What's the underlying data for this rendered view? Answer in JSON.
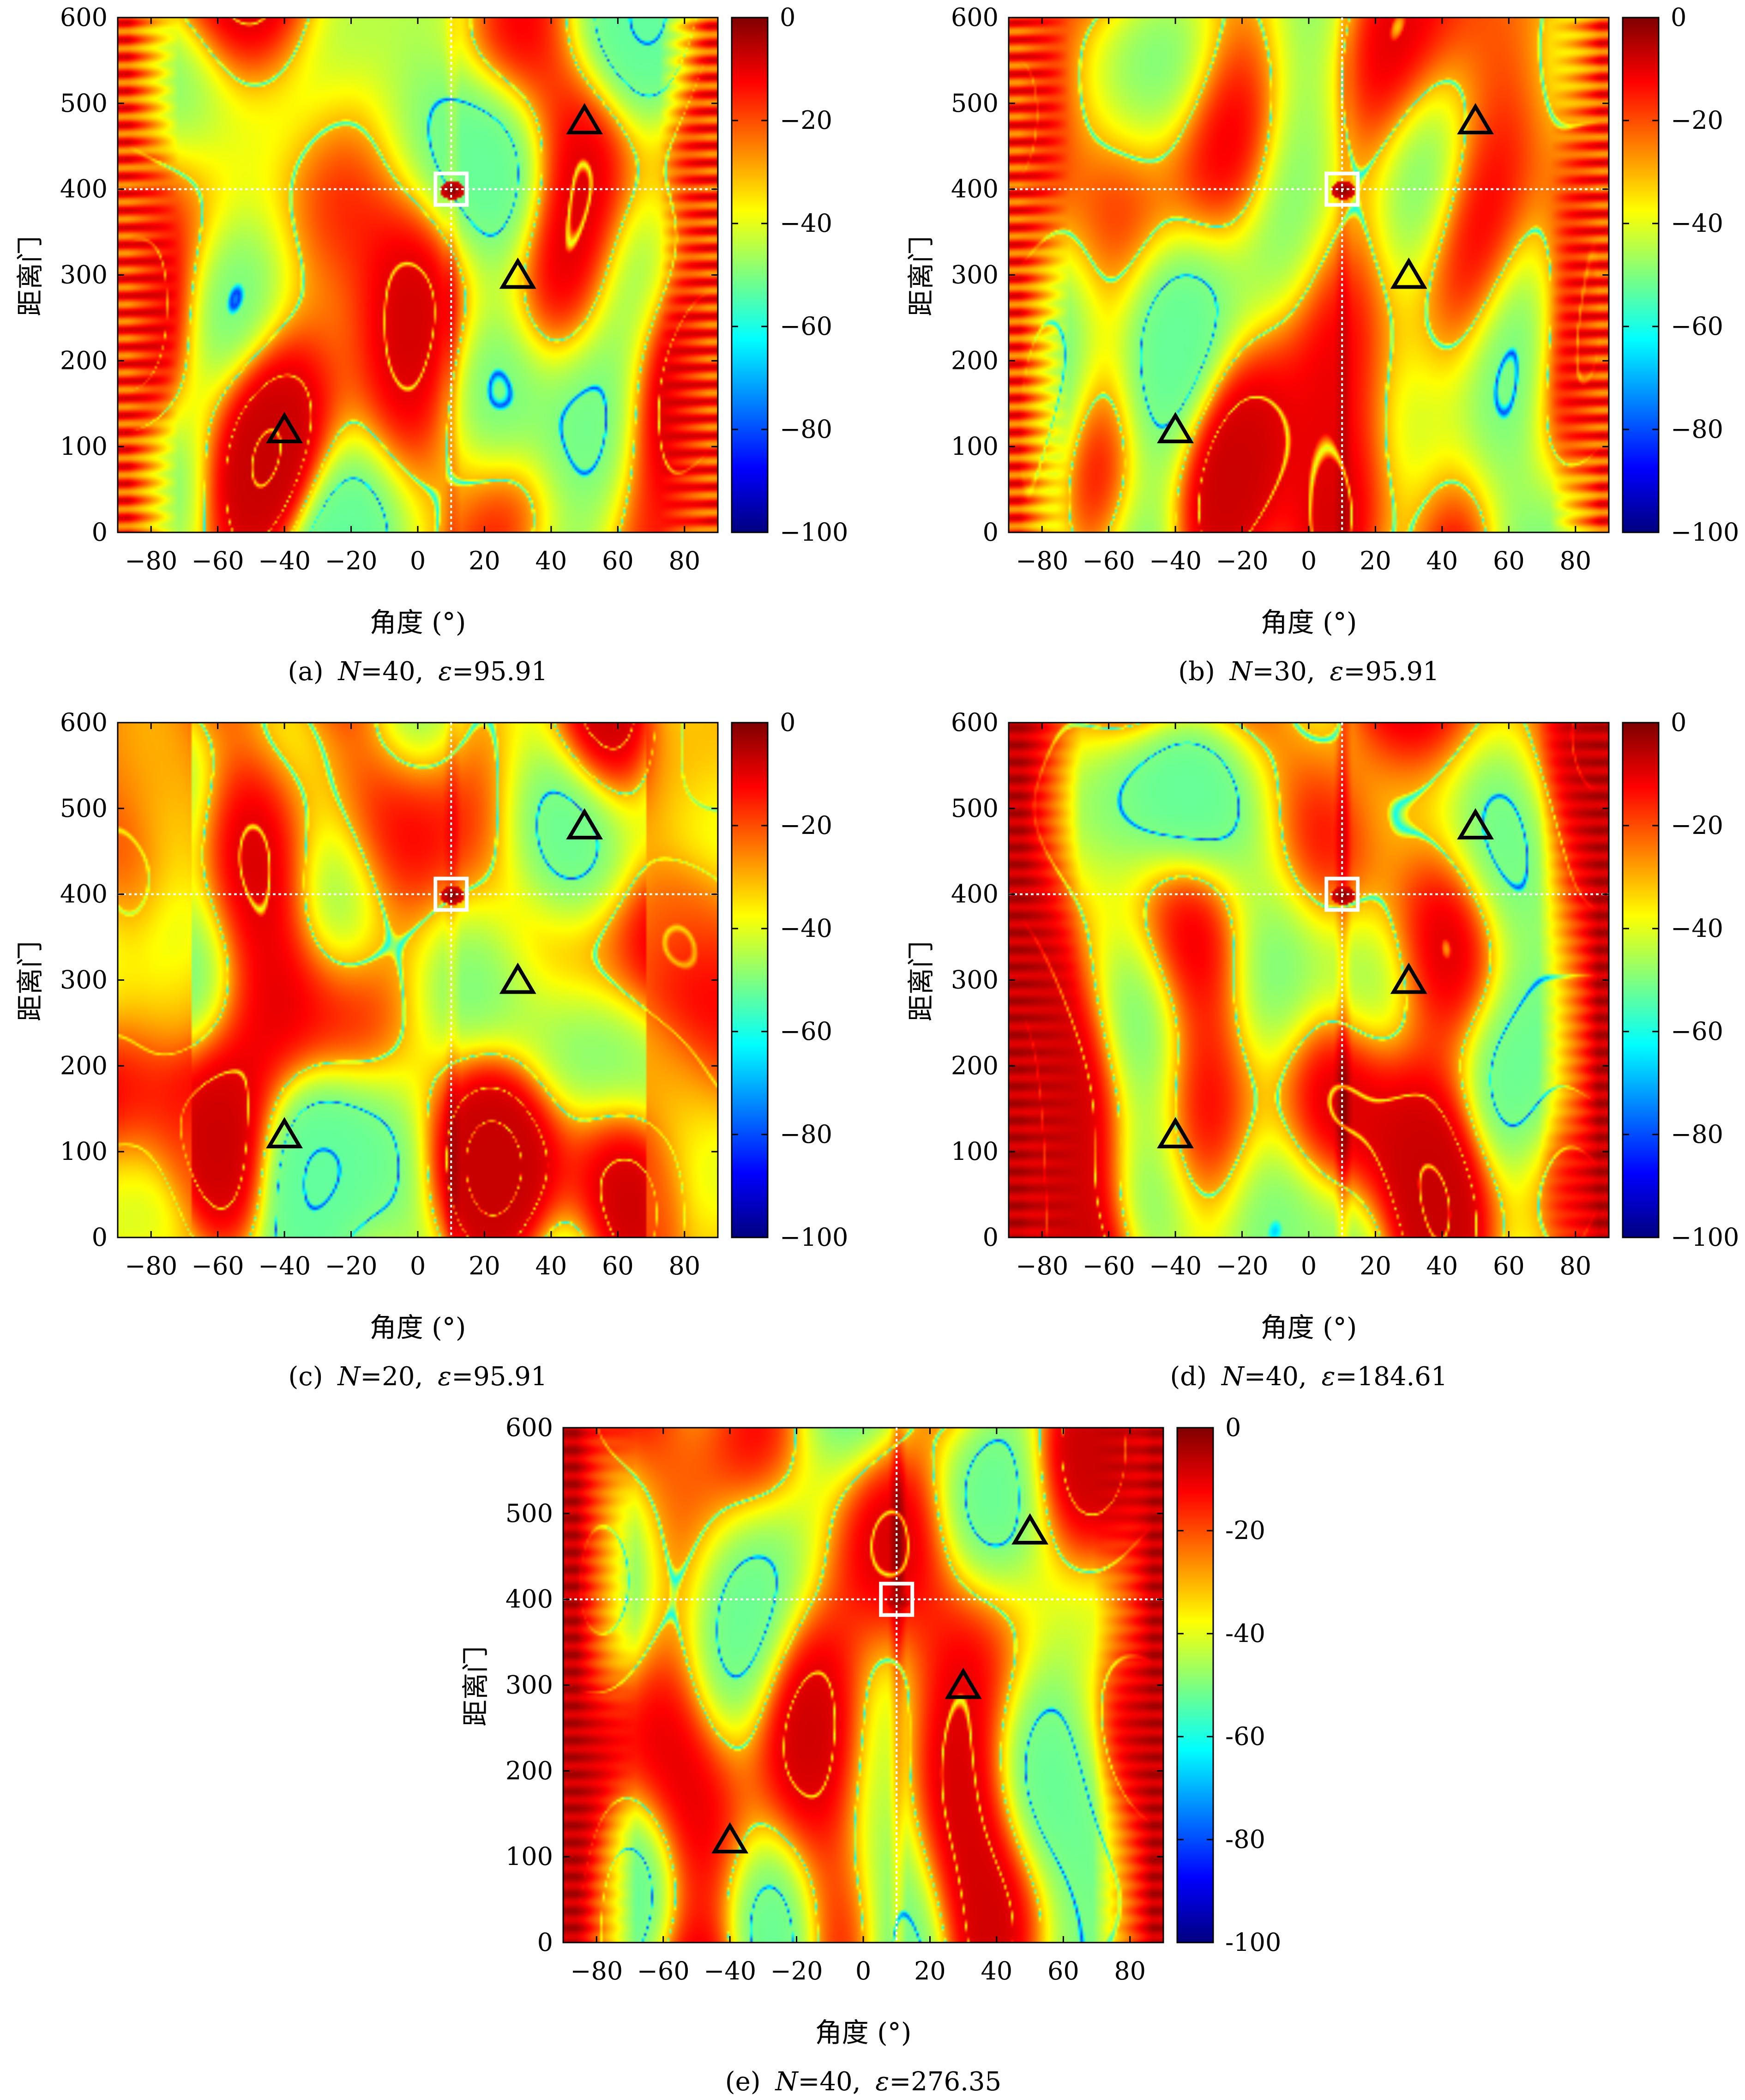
{
  "chart_data": [
    {
      "type": "heatmap",
      "caption": {
        "letter": "(a)",
        "n_label": "N",
        "n_value": "=40,",
        "eps_label": "ε",
        "eps_value": "=95.91"
      },
      "xlabel": "角度 (°)",
      "ylabel": "距离门",
      "xlim": [
        -90,
        90
      ],
      "ylim": [
        0,
        600
      ],
      "xticks": [
        -80,
        -60,
        -40,
        -20,
        0,
        20,
        40,
        60,
        80
      ],
      "yticks": [
        0,
        100,
        200,
        300,
        400,
        500,
        600
      ],
      "colorbar": {
        "range": [
          -100,
          0
        ],
        "ticks": [
          0,
          -20,
          -40,
          -60,
          -80,
          -100
        ],
        "labels": [
          "0",
          "−20",
          "−40",
          "−60",
          "−80",
          "−100"
        ]
      },
      "target": {
        "angle": 10,
        "range": 400
      },
      "interferers": [
        {
          "angle": -40,
          "range": 120
        },
        {
          "angle": 30,
          "range": 300
        },
        {
          "angle": 50,
          "range": 480
        }
      ],
      "edge_pattern": "banded"
    },
    {
      "type": "heatmap",
      "caption": {
        "letter": "(b)",
        "n_label": "N",
        "n_value": "=30,",
        "eps_label": "ε",
        "eps_value": "=95.91"
      },
      "xlabel": "角度 (°)",
      "ylabel": "距离门",
      "xlim": [
        -90,
        90
      ],
      "ylim": [
        0,
        600
      ],
      "xticks": [
        -80,
        -60,
        -40,
        -20,
        0,
        20,
        40,
        60,
        80
      ],
      "yticks": [
        0,
        100,
        200,
        300,
        400,
        500,
        600
      ],
      "colorbar": {
        "range": [
          -100,
          0
        ],
        "ticks": [
          0,
          -20,
          -40,
          -60,
          -80,
          -100
        ],
        "labels": [
          "0",
          "−20",
          "−40",
          "−60",
          "−80",
          "−100"
        ]
      },
      "target": {
        "angle": 10,
        "range": 400
      },
      "interferers": [
        {
          "angle": -40,
          "range": 120
        },
        {
          "angle": 30,
          "range": 300
        },
        {
          "angle": 50,
          "range": 480
        }
      ],
      "edge_pattern": "banded"
    },
    {
      "type": "heatmap",
      "caption": {
        "letter": "(c)",
        "n_label": "N",
        "n_value": "=20,",
        "eps_label": "ε",
        "eps_value": "=95.91"
      },
      "xlabel": "角度 (°)",
      "ylabel": "距离门",
      "xlim": [
        -90,
        90
      ],
      "ylim": [
        0,
        600
      ],
      "xticks": [
        -80,
        -60,
        -40,
        -20,
        0,
        20,
        40,
        60,
        80
      ],
      "yticks": [
        0,
        100,
        200,
        300,
        400,
        500,
        600
      ],
      "colorbar": {
        "range": [
          -100,
          0
        ],
        "ticks": [
          0,
          -20,
          -40,
          -60,
          -80,
          -100
        ],
        "labels": [
          "0",
          "−20",
          "−40",
          "−60",
          "−80",
          "−100"
        ]
      },
      "target": {
        "angle": 10,
        "range": 400
      },
      "interferers": [
        {
          "angle": -40,
          "range": 120
        },
        {
          "angle": 30,
          "range": 300
        },
        {
          "angle": 50,
          "range": 480
        }
      ],
      "edge_pattern": "smooth"
    },
    {
      "type": "heatmap",
      "caption": {
        "letter": "(d)",
        "n_label": "N",
        "n_value": "=40,",
        "eps_label": "ε",
        "eps_value": "=184.61"
      },
      "xlabel": "角度 (°)",
      "ylabel": "距离门",
      "xlim": [
        -90,
        90
      ],
      "ylim": [
        0,
        600
      ],
      "xticks": [
        -80,
        -60,
        -40,
        -20,
        0,
        20,
        40,
        60,
        80
      ],
      "yticks": [
        0,
        100,
        200,
        300,
        400,
        500,
        600
      ],
      "colorbar": {
        "range": [
          -100,
          0
        ],
        "ticks": [
          0,
          -20,
          -40,
          -60,
          -80,
          -100
        ],
        "labels": [
          "0",
          "−20",
          "−40",
          "−60",
          "−80",
          "−100"
        ]
      },
      "target": {
        "angle": 10,
        "range": 400
      },
      "interferers": [
        {
          "angle": -40,
          "range": 120
        },
        {
          "angle": 30,
          "range": 300
        },
        {
          "angle": 50,
          "range": 480
        }
      ],
      "edge_pattern": "red-bands"
    },
    {
      "type": "heatmap",
      "caption": {
        "letter": "(e)",
        "n_label": "N",
        "n_value": "=40,",
        "eps_label": "ε",
        "eps_value": "=276.35"
      },
      "xlabel": "角度 (°)",
      "ylabel": "距离门",
      "xlim": [
        -90,
        90
      ],
      "ylim": [
        0,
        600
      ],
      "xticks": [
        -80,
        -60,
        -40,
        -20,
        0,
        20,
        40,
        60,
        80
      ],
      "yticks": [
        0,
        100,
        200,
        300,
        400,
        500,
        600
      ],
      "colorbar": {
        "range": [
          -100,
          0
        ],
        "ticks": [
          0,
          -20,
          -40,
          -60,
          -80,
          -100
        ],
        "labels": [
          "0",
          "-20",
          "-40",
          "-60",
          "-80",
          "-100"
        ]
      },
      "target": {
        "angle": 10,
        "range": 400
      },
      "interferers": [
        {
          "angle": -40,
          "range": 120
        },
        {
          "angle": 30,
          "range": 300
        },
        {
          "angle": 50,
          "range": 480
        }
      ],
      "edge_pattern": "red-bands"
    }
  ],
  "colors": {
    "jet": [
      "#00007f",
      "#0000ff",
      "#007fff",
      "#00ffff",
      "#7fff7f",
      "#ffff00",
      "#ff7f00",
      "#ff0000",
      "#7f0000"
    ],
    "marker_target": "#ffffff",
    "marker_interferer": "#000000",
    "guide_line": "#ffffff"
  },
  "icons": {
    "target": "white-square-icon",
    "interferer": "black-triangle-icon"
  }
}
